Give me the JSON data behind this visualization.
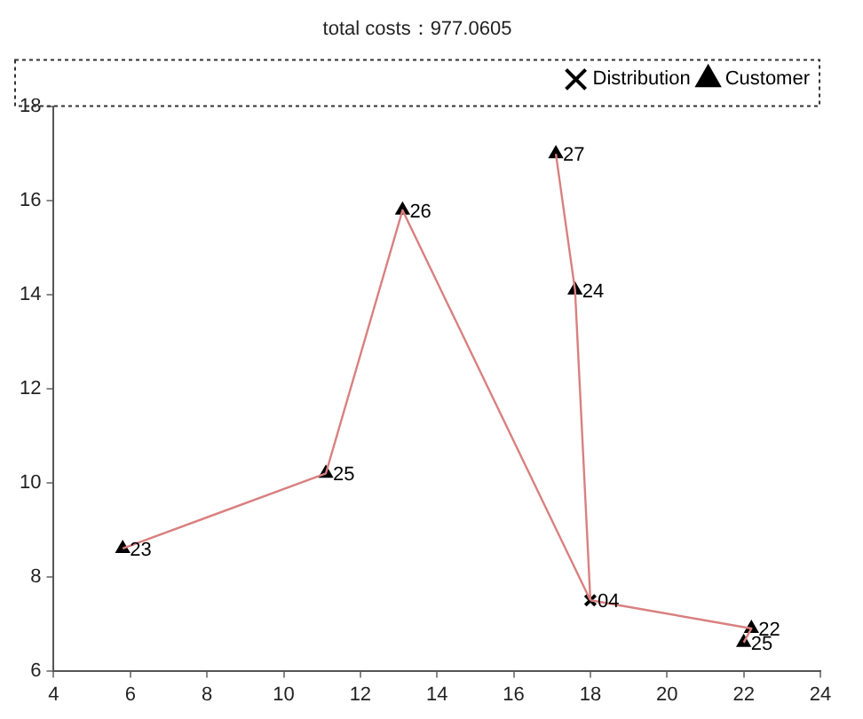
{
  "chart_data": {
    "type": "scatter",
    "title": "total costs：977.0605",
    "series": [
      {
        "type": "line",
        "color": "#d98080",
        "marker": "none",
        "x": [
          18,
          13.1,
          11.1,
          5.8
        ],
        "values": [
          7.5,
          15.8,
          10.2,
          8.6
        ]
      },
      {
        "type": "line",
        "color": "#d98080",
        "marker": "none",
        "x": [
          18,
          17.6,
          17.1
        ],
        "values": [
          7.5,
          14.1,
          17.0
        ]
      },
      {
        "type": "line",
        "color": "#d98080",
        "marker": "none",
        "x": [
          18,
          22.2,
          22.0
        ],
        "values": [
          7.5,
          6.9,
          6.6
        ]
      },
      {
        "type": "scatter",
        "name": "Distribution",
        "color": "#000000",
        "marker": "cross",
        "x": [
          18
        ],
        "values": [
          7.5
        ]
      },
      {
        "type": "scatter",
        "name": "Customer",
        "color": "#000000",
        "marker": "triangle",
        "x": [
          5.8,
          11.1,
          13.1,
          17.1,
          17.6,
          22.2,
          22.0
        ],
        "values": [
          8.6,
          10.2,
          15.8,
          17.0,
          14.1,
          6.9,
          6.6
        ]
      }
    ],
    "annotations": [
      {
        "text": "23",
        "x": 5.8,
        "y": 8.6
      },
      {
        "text": "25",
        "x": 11.1,
        "y": 10.2
      },
      {
        "text": "26",
        "x": 13.1,
        "y": 15.8
      },
      {
        "text": "04",
        "x": 18,
        "y": 7.5
      },
      {
        "text": "27",
        "x": 17.1,
        "y": 17.0
      },
      {
        "text": "24",
        "x": 17.6,
        "y": 14.1
      },
      {
        "text": "22",
        "x": 22.2,
        "y": 6.9
      },
      {
        "text": "25",
        "x": 22.0,
        "y": 6.6
      }
    ],
    "xlim": [
      4,
      24
    ],
    "xticks": [
      4,
      6,
      8,
      10,
      12,
      14,
      16,
      18,
      20,
      22,
      24
    ],
    "ylim": [
      6,
      18
    ],
    "yticks": [
      6,
      8,
      10,
      12,
      14,
      16,
      18
    ],
    "grid": false,
    "legend": "top right"
  }
}
